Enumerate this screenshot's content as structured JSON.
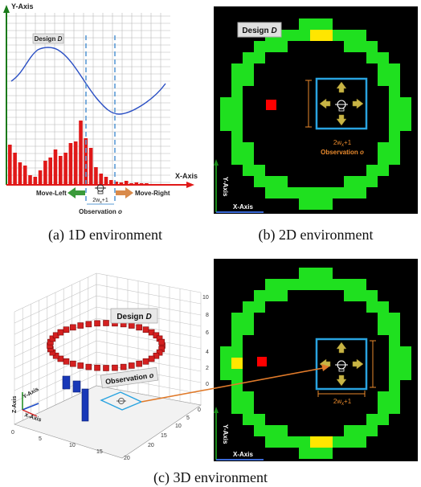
{
  "panel_a": {
    "y_axis_label": "Y-Axis",
    "x_axis_label": "X-Axis",
    "design_label": "Design ",
    "design_symbol": "D",
    "move_left": "Move-Left",
    "move_right": "Move-Right",
    "window_label": "2w",
    "window_sub": "x",
    "window_suffix": "+1",
    "observation_label": "Observation ",
    "observation_symbol": "o",
    "caption": "(a)  1D environment",
    "colors": {
      "curve": "#2a4fc4",
      "bars": "#e01818",
      "axis": "#1a7a1a",
      "arrow_left": "#3a9a3a",
      "arrow_right": "#d98a4a",
      "window": "#5b9bd5"
    }
  },
  "panel_b": {
    "design_label": "Design ",
    "design_symbol": "D",
    "y_axis_label": "Y-Axis",
    "x_axis_label": "X-Axis",
    "window_label": "2w",
    "window_sub": "x",
    "window_suffix": "+1",
    "observation_label": "Observation ",
    "observation_symbol": "o",
    "caption": "(b)  2D environment",
    "colors": {
      "ring": "#1fe01f",
      "highlight": "#ffe600",
      "agent_target": "#ff0000",
      "window": "#29a3e0",
      "arrows": "#c8b445",
      "dimension": "#e8892c"
    }
  },
  "panel_c": {
    "design_label": "Design ",
    "design_symbol": "D",
    "observation_label": "Observation ",
    "observation_symbol": "o",
    "z_axis_label": "Z-Axis",
    "y_axis_label": "Y-Axis",
    "x_axis_label": "X-Axis",
    "x_ticks": [
      "0",
      "5",
      "10",
      "15",
      "20"
    ],
    "y_ticks": [
      "0",
      "5",
      "10",
      "15",
      "20"
    ],
    "z_ticks": [
      "0",
      "2",
      "4",
      "6",
      "8",
      "10"
    ],
    "y_axis_label_2d": "Y-Axis",
    "x_axis_label_2d": "X-Axis",
    "window_label": "2w",
    "window_sub": "x",
    "window_suffix": "+1",
    "caption": "(c)  3D environment",
    "colors": {
      "ring_3d": "#d42020",
      "bars_3d": "#1838b8",
      "connector": "#e07a2a"
    }
  }
}
